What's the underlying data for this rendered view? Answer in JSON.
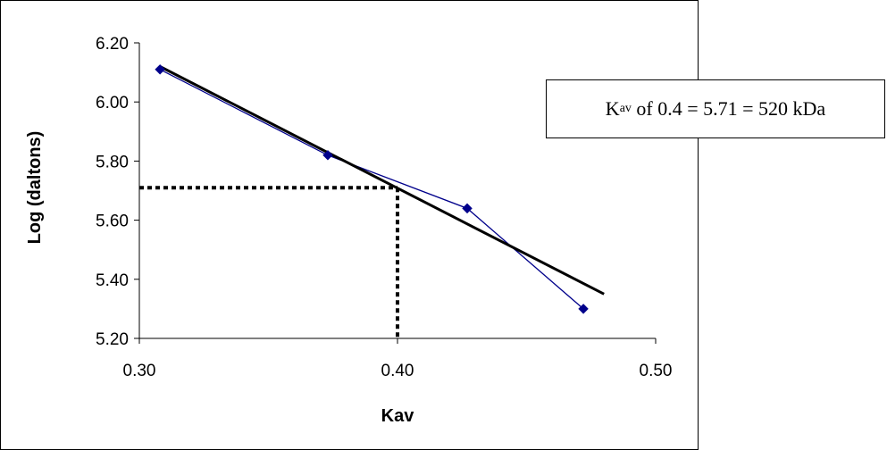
{
  "chart_data": {
    "type": "scatter",
    "xlabel": "Kav",
    "ylabel": "Log (daltons)",
    "xlim": [
      0.3,
      0.5
    ],
    "ylim": [
      5.2,
      6.2
    ],
    "x_ticks": [
      "0.30",
      "0.40",
      "0.50"
    ],
    "y_ticks": [
      "5.20",
      "5.40",
      "5.60",
      "5.80",
      "6.00",
      "6.20"
    ],
    "grid": false,
    "series": [
      {
        "x": [
          0.308,
          0.373,
          0.427,
          0.472
        ],
        "y": [
          6.11,
          5.82,
          5.64,
          5.3
        ],
        "color": "#00008B",
        "marker": "diamond"
      }
    ],
    "trendline": {
      "x": [
        0.308,
        0.48
      ],
      "y": [
        6.12,
        5.35
      ],
      "color": "#000000"
    },
    "reference_lines": {
      "x": 0.4,
      "y": 5.71,
      "style": "dotted"
    },
    "annotation": {
      "main": "K",
      "subscript": "av",
      "rest": " of 0.4 = 5.71 = 520 kDa"
    }
  }
}
